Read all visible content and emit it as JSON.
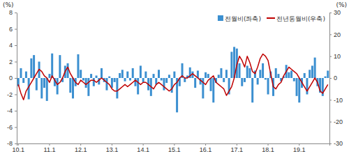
{
  "chart_data": {
    "type": "bar",
    "ylabel": "(%)",
    "y2label": "(%)",
    "categories": [
      "10.1",
      null,
      null,
      null,
      null,
      null,
      null,
      null,
      null,
      null,
      null,
      null,
      "11.1",
      null,
      null,
      null,
      null,
      null,
      null,
      null,
      null,
      null,
      null,
      null,
      "12.1",
      null,
      null,
      null,
      null,
      null,
      null,
      null,
      null,
      null,
      null,
      null,
      "13.1",
      null,
      null,
      null,
      null,
      null,
      null,
      null,
      null,
      null,
      null,
      null,
      "14.1",
      null,
      null,
      null,
      null,
      null,
      null,
      null,
      null,
      null,
      null,
      null,
      "15.1",
      null,
      null,
      null,
      null,
      null,
      null,
      null,
      null,
      null,
      null,
      null,
      "16.1",
      null,
      null,
      null,
      null,
      null,
      null,
      null,
      null,
      null,
      null,
      null,
      "17.1",
      null,
      null,
      null,
      null,
      null,
      null,
      null,
      null,
      null,
      null,
      null,
      "18.1",
      null,
      null,
      null,
      null,
      null,
      null,
      null,
      null,
      null,
      null,
      null,
      "19.1",
      null,
      null,
      null,
      null,
      null,
      null,
      null,
      null,
      null,
      null,
      null
    ],
    "series": [
      {
        "name": "전월비(좌축)",
        "type": "bar",
        "color": "#3b8fd0",
        "values": [
          -1.0,
          1.2,
          -0.6,
          0.8,
          -2.6,
          2.4,
          2.8,
          -1.5,
          2.0,
          -2.5,
          -1.2,
          -2.8,
          0.5,
          3.0,
          -1.0,
          -2.0,
          2.8,
          -0.5,
          1.5,
          1.8,
          -1.8,
          -2.5,
          -1.0,
          2.9,
          1.0,
          -0.3,
          -1.2,
          -2.2,
          0.5,
          -1.0,
          0.3,
          -0.8,
          1.2,
          -0.5,
          -1.5,
          0.2,
          -1.2,
          -0.5,
          -2.5,
          0.6,
          1.0,
          -0.4,
          0.8,
          -0.3,
          1.2,
          -1.0,
          -2.0,
          1.5,
          -0.5,
          0.8,
          -1.5,
          -2.2,
          0.5,
          -0.8,
          1.0,
          -0.3,
          -1.5,
          -0.6,
          0.4,
          -1.8,
          0.8,
          -4.2,
          -1.0,
          1.8,
          -0.5,
          0.3,
          1.3,
          0.8,
          -1.2,
          0.9,
          -0.8,
          -2.5,
          0.7,
          0.5,
          -1.6,
          -3.0,
          -0.6,
          0.4,
          1.2,
          -0.5,
          1.0,
          -2.0,
          3.2,
          3.8,
          3.6,
          1.8,
          -1.0,
          -0.5,
          1.5,
          1.2,
          -3.0,
          0.9,
          -0.8,
          1.0,
          1.8,
          -0.2,
          -2.0,
          0.8,
          -2.2,
          1.2,
          0.5,
          -0.4,
          0.2,
          1.6,
          0.7,
          0.9,
          -0.4,
          -2.2,
          -3.0,
          -1.2,
          0.6,
          -2.0,
          1.0,
          1.5,
          2.5,
          -1.0,
          -1.8,
          -2.2,
          0.2,
          0.9
        ]
      },
      {
        "name": "전년동월비(우축)",
        "type": "line",
        "axis": "y2",
        "color": "#c00000",
        "values": [
          -3,
          -7,
          -10,
          -6,
          -4,
          -2,
          0,
          2,
          4,
          3,
          1,
          0,
          -2,
          1,
          -1,
          -3,
          -2,
          0,
          3,
          5,
          2,
          0,
          -2,
          -3,
          -1,
          -2,
          -3,
          -2,
          -1,
          -1,
          -2,
          -1,
          0,
          -1,
          -2,
          -3,
          -5,
          -6,
          -6,
          -5,
          -4,
          -3,
          -4,
          -3,
          -2,
          -1,
          -2,
          -3,
          -2,
          -2,
          -3,
          -4,
          -5,
          -3,
          -2,
          -3,
          -4,
          -5,
          -6,
          -5,
          -3,
          -2,
          0,
          1,
          0,
          0,
          1,
          2,
          1,
          0,
          -1,
          -2,
          -3,
          -1,
          0,
          1,
          -2,
          -3,
          -4,
          -5,
          -8,
          -6,
          -4,
          0,
          6,
          10,
          8,
          5,
          10,
          7,
          3,
          2,
          5,
          9,
          11,
          10,
          8,
          2,
          -4,
          -5,
          -3,
          -2,
          1,
          3,
          5,
          4,
          3,
          2,
          0,
          -2,
          -4,
          -6,
          -4,
          -2,
          0,
          -2,
          -6,
          -7,
          -5,
          -3
        ]
      }
    ],
    "ylim": [
      -8,
      8
    ],
    "yticks": [
      -8,
      -6,
      -4,
      -2,
      0,
      2,
      4,
      6,
      8
    ],
    "y2lim": [
      -30,
      30
    ],
    "y2ticks": [
      -30,
      -20,
      -10,
      0,
      10,
      20,
      30
    ],
    "legend": "upper right",
    "grid": false
  }
}
